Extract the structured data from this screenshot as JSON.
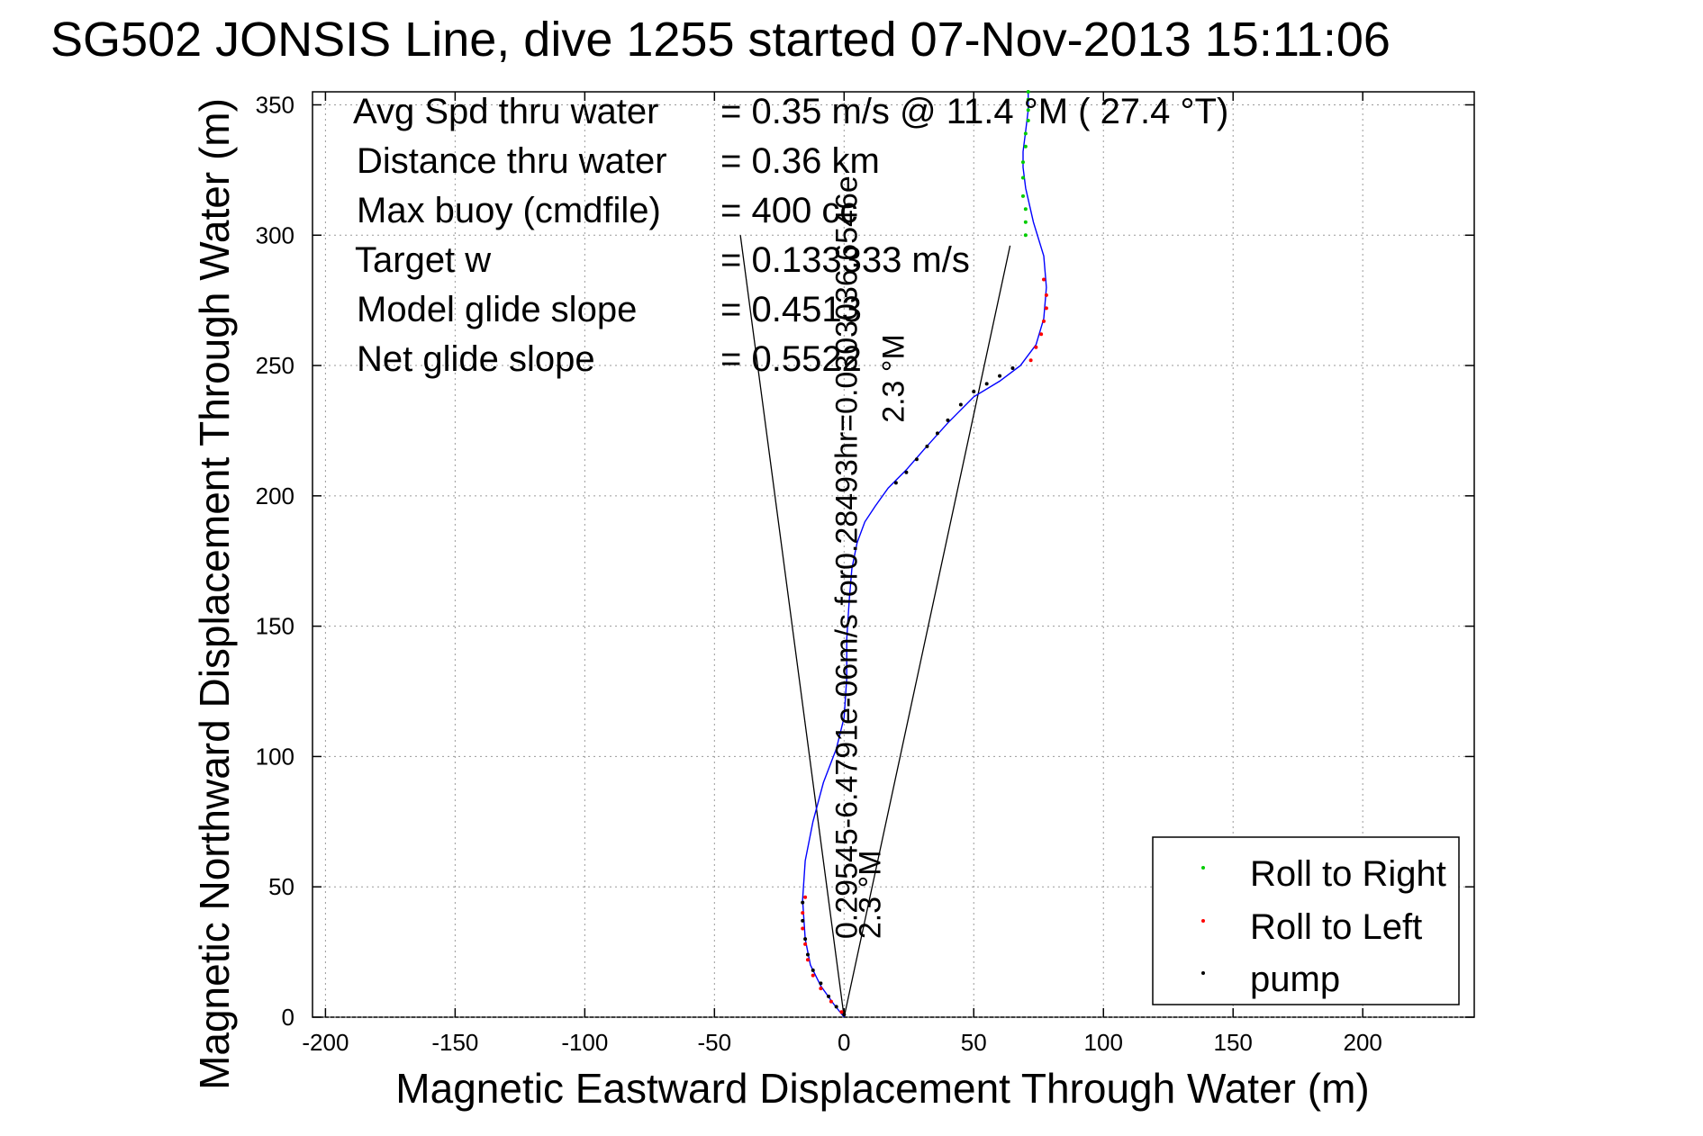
{
  "chart_data": {
    "type": "line",
    "title": "SG502 JONSIS Line, dive 1255 started 07-Nov-2013 15:11:06",
    "xlabel": "Magnetic Eastward Displacement Through Water (m)",
    "ylabel": "Magnetic Northward Displacement Through Water (m)",
    "xlim": [
      -205,
      243
    ],
    "ylim": [
      0,
      355
    ],
    "xticks": [
      -200,
      -150,
      -100,
      -50,
      0,
      50,
      100,
      150,
      200
    ],
    "yticks": [
      0,
      50,
      100,
      150,
      200,
      250,
      300,
      350
    ],
    "xtick_labels": [
      "-200",
      "-150",
      "-100",
      "-50",
      "0",
      "50",
      "100",
      "150",
      "200"
    ],
    "ytick_labels": [
      "0",
      "50",
      "100",
      "150",
      "200",
      "250",
      "300",
      "350"
    ],
    "grid": true,
    "legend_position": "bottom-right",
    "stats": [
      {
        "label": "Avg Spd thru water",
        "value": "=  0.35 m/s @   11.4 °M ( 27.4 °T)"
      },
      {
        "label": "Distance thru water",
        "value": "=  0.36 km"
      },
      {
        "label": "Max buoy (cmdfile)",
        "value": "= 400 cc"
      },
      {
        "label": "Target w",
        "value": "= 0.133333 m/s"
      },
      {
        "label": "Model glide slope",
        "value": "= 0.4513"
      },
      {
        "label": "Net glide slope",
        "value": "= 0.5522"
      }
    ],
    "rotated_annotations": [
      {
        "text": "0.29545-6.4791e-06m/s for0.28493hr=0.0303036.6546e",
        "x": 5,
        "y": 30,
        "color": "#000000"
      },
      {
        "text": "2.3 °M",
        "x": 14,
        "y": 30,
        "color": "#000000"
      },
      {
        "text": "2.3 °M",
        "x": 23,
        "y": 228,
        "color": "#000000"
      }
    ],
    "guide_lines": [
      {
        "x": [
          0,
          -40
        ],
        "y": [
          0,
          300
        ]
      },
      {
        "x": [
          0,
          64
        ],
        "y": [
          0,
          296
        ]
      }
    ],
    "series": [
      {
        "name": "track",
        "color": "#0000ff",
        "x": [
          0,
          -4,
          -9,
          -13,
          -15,
          -16,
          -15,
          -12,
          -8,
          -3,
          0,
          1,
          1,
          2,
          3,
          5,
          8,
          12,
          17,
          24,
          31,
          40,
          50,
          60,
          68,
          74,
          77,
          78,
          77,
          73,
          70,
          69,
          69,
          70,
          71,
          71
        ],
        "y": [
          0,
          5,
          12,
          20,
          30,
          45,
          60,
          75,
          90,
          103,
          115,
          130,
          145,
          160,
          172,
          182,
          190,
          196,
          203,
          210,
          218,
          228,
          238,
          244,
          250,
          258,
          268,
          280,
          292,
          305,
          318,
          326,
          332,
          340,
          348,
          355
        ]
      },
      {
        "name": "Roll to Right",
        "marker": "dot",
        "color": "#00cc00",
        "x": [
          70,
          70,
          70,
          69,
          69,
          69,
          70,
          70,
          71,
          71,
          71,
          71
        ],
        "y": [
          300,
          305,
          310,
          315,
          322,
          328,
          334,
          339,
          344,
          348,
          352,
          355
        ]
      },
      {
        "name": "Roll to Left",
        "marker": "dot",
        "color": "#ff0000",
        "x": [
          -1,
          -5,
          -9,
          -12,
          -14,
          -15,
          -16,
          -16,
          -15,
          72,
          74,
          76,
          77,
          78,
          78,
          77
        ],
        "y": [
          2,
          6,
          11,
          16,
          22,
          28,
          34,
          40,
          46,
          252,
          257,
          262,
          267,
          272,
          277,
          283
        ]
      },
      {
        "name": "pump",
        "marker": "dot",
        "color": "#000000",
        "x": [
          0,
          -3,
          -6,
          -9,
          -12,
          -14,
          -15,
          -16,
          -16,
          20,
          24,
          28,
          32,
          36,
          40,
          45,
          50,
          55,
          60,
          65
        ],
        "y": [
          1,
          4,
          8,
          13,
          18,
          24,
          30,
          37,
          44,
          205,
          209,
          214,
          219,
          224,
          229,
          235,
          240,
          243,
          246,
          249
        ]
      }
    ]
  }
}
